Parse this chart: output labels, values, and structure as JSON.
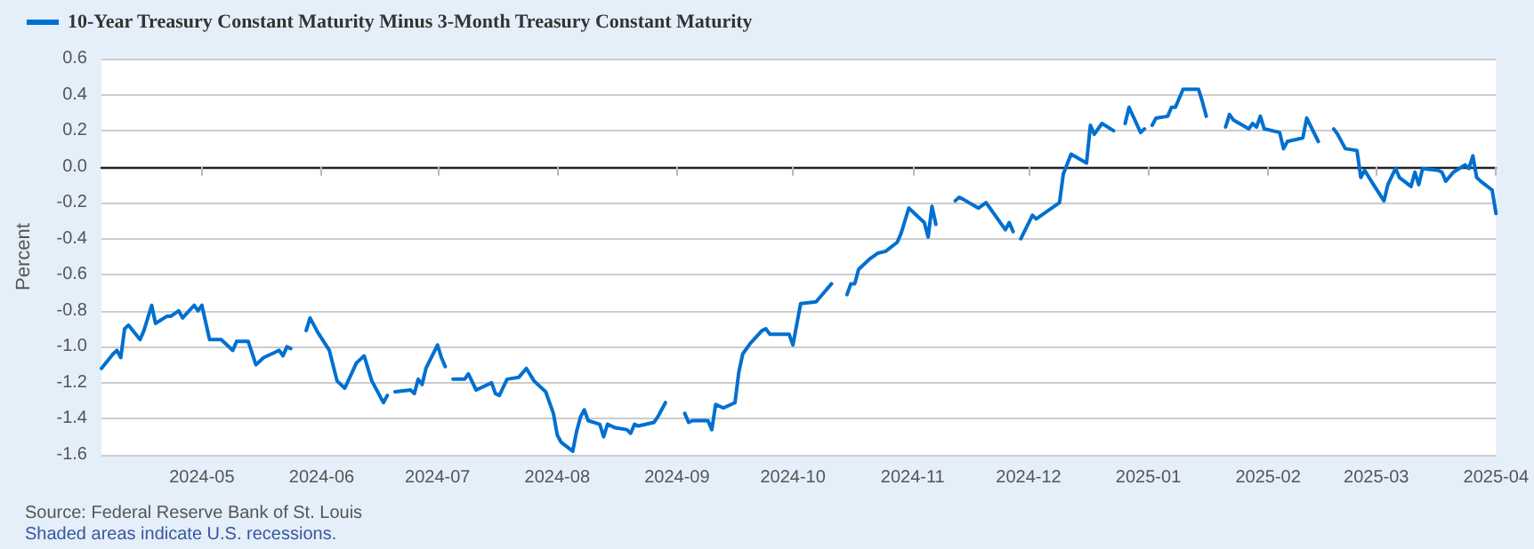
{
  "chart_data": {
    "type": "line",
    "ylabel": "Percent",
    "annotations": [
      "Source: Federal Reserve Bank of St. Louis",
      "Shaded areas indicate U.S. recessions."
    ],
    "x": [
      "2024-04-05",
      "2024-04-08",
      "2024-04-09",
      "2024-04-10",
      "2024-04-11",
      "2024-04-12",
      "2024-04-15",
      "2024-04-16",
      "2024-04-18",
      "2024-04-19",
      "2024-04-22",
      "2024-04-23",
      "2024-04-25",
      "2024-04-26",
      "2024-04-29",
      "2024-04-30",
      "2024-05-01",
      "2024-05-03",
      "2024-05-06",
      "2024-05-07",
      "2024-05-09",
      "2024-05-10",
      "2024-05-13",
      "2024-05-15",
      "2024-05-17",
      "2024-05-20",
      "2024-05-21",
      "2024-05-22",
      "2024-05-23",
      "2024-05-24",
      "2024-05-27",
      "2024-05-28",
      "2024-05-29",
      "2024-05-31",
      "2024-06-03",
      "2024-06-05",
      "2024-06-07",
      "2024-06-10",
      "2024-06-12",
      "2024-06-14",
      "2024-06-17",
      "2024-06-18",
      "2024-06-19",
      "2024-06-20",
      "2024-06-24",
      "2024-06-25",
      "2024-06-26",
      "2024-06-27",
      "2024-06-28",
      "2024-07-01",
      "2024-07-02",
      "2024-07-03",
      "2024-07-04",
      "2024-07-05",
      "2024-07-08",
      "2024-07-09",
      "2024-07-11",
      "2024-07-12",
      "2024-07-15",
      "2024-07-16",
      "2024-07-17",
      "2024-07-19",
      "2024-07-22",
      "2024-07-24",
      "2024-07-26",
      "2024-07-29",
      "2024-07-31",
      "2024-08-01",
      "2024-08-02",
      "2024-08-05",
      "2024-08-06",
      "2024-08-07",
      "2024-08-08",
      "2024-08-09",
      "2024-08-12",
      "2024-08-13",
      "2024-08-14",
      "2024-08-16",
      "2024-08-19",
      "2024-08-20",
      "2024-08-21",
      "2024-08-22",
      "2024-08-26",
      "2024-08-27",
      "2024-08-29",
      "2024-09-02",
      "2024-09-03",
      "2024-09-04",
      "2024-09-05",
      "2024-09-09",
      "2024-09-10",
      "2024-09-11",
      "2024-09-13",
      "2024-09-16",
      "2024-09-17",
      "2024-09-18",
      "2024-09-20",
      "2024-09-23",
      "2024-09-24",
      "2024-09-25",
      "2024-09-30",
      "2024-10-01",
      "2024-10-03",
      "2024-10-07",
      "2024-10-09",
      "2024-10-11",
      "2024-10-14",
      "2024-10-15",
      "2024-10-16",
      "2024-10-17",
      "2024-10-18",
      "2024-10-21",
      "2024-10-23",
      "2024-10-25",
      "2024-10-28",
      "2024-10-29",
      "2024-10-31",
      "2024-11-04",
      "2024-11-05",
      "2024-11-06",
      "2024-11-07",
      "2024-11-11",
      "2024-11-12",
      "2024-11-13",
      "2024-11-14",
      "2024-11-18",
      "2024-11-20",
      "2024-11-25",
      "2024-11-26",
      "2024-11-27",
      "2024-11-28",
      "2024-11-29",
      "2024-12-02",
      "2024-12-03",
      "2024-12-09",
      "2024-12-10",
      "2024-12-12",
      "2024-12-16",
      "2024-12-17",
      "2024-12-18",
      "2024-12-20",
      "2024-12-23",
      "2024-12-25",
      "2024-12-26",
      "2024-12-27",
      "2024-12-30",
      "2024-12-31",
      "2025-01-01",
      "2025-01-02",
      "2025-01-03",
      "2025-01-06",
      "2025-01-07",
      "2025-01-08",
      "2025-01-10",
      "2025-01-14",
      "2025-01-15",
      "2025-01-16",
      "2025-01-20",
      "2025-01-21",
      "2025-01-22",
      "2025-01-23",
      "2025-01-27",
      "2025-01-28",
      "2025-01-29",
      "2025-01-30",
      "2025-01-31",
      "2025-02-04",
      "2025-02-05",
      "2025-02-06",
      "2025-02-10",
      "2025-02-11",
      "2025-02-14",
      "2025-02-17",
      "2025-02-18",
      "2025-02-19",
      "2025-02-21",
      "2025-02-24",
      "2025-02-25",
      "2025-02-26",
      "2025-02-28",
      "2025-03-03",
      "2025-03-04",
      "2025-03-06",
      "2025-03-07",
      "2025-03-10",
      "2025-03-11",
      "2025-03-12",
      "2025-03-13",
      "2025-03-17",
      "2025-03-18",
      "2025-03-19",
      "2025-03-21",
      "2025-03-24",
      "2025-03-25",
      "2025-03-26",
      "2025-03-27",
      "2025-03-28",
      "2025-03-31",
      "2025-04-01"
    ],
    "series": [
      {
        "name": "10-Year Treasury Constant Maturity Minus 3-Month Treasury Constant Maturity",
        "color": "#0070d0",
        "values": [
          -1.12,
          -1.04,
          -1.02,
          -1.06,
          -0.9,
          -0.88,
          -0.96,
          -0.91,
          -0.77,
          -0.87,
          -0.83,
          -0.83,
          -0.8,
          -0.84,
          -0.77,
          -0.8,
          -0.77,
          -0.96,
          -0.96,
          -0.98,
          -1.02,
          -0.97,
          -0.97,
          -1.1,
          -1.06,
          -1.03,
          -1.02,
          -1.05,
          -1.0,
          -1.01,
          null,
          -0.91,
          -0.84,
          -0.92,
          -1.02,
          -1.19,
          -1.23,
          -1.09,
          -1.05,
          -1.19,
          -1.31,
          -1.27,
          null,
          -1.25,
          -1.24,
          -1.26,
          -1.18,
          -1.21,
          -1.12,
          -0.99,
          -1.06,
          -1.11,
          null,
          -1.18,
          -1.18,
          -1.15,
          -1.24,
          -1.23,
          -1.2,
          -1.26,
          -1.27,
          -1.18,
          -1.17,
          -1.12,
          -1.19,
          -1.25,
          -1.37,
          -1.49,
          -1.53,
          -1.58,
          -1.47,
          -1.39,
          -1.35,
          -1.41,
          -1.43,
          -1.5,
          -1.43,
          -1.45,
          -1.46,
          -1.48,
          -1.43,
          -1.44,
          -1.42,
          -1.39,
          -1.31,
          null,
          -1.37,
          -1.42,
          -1.41,
          -1.41,
          -1.46,
          -1.32,
          -1.34,
          -1.31,
          -1.14,
          -1.04,
          -0.98,
          -0.91,
          -0.9,
          -0.93,
          -0.93,
          -0.99,
          -0.76,
          -0.75,
          -0.7,
          -0.65,
          null,
          -0.71,
          -0.65,
          -0.65,
          -0.57,
          -0.51,
          -0.48,
          -0.47,
          -0.42,
          -0.37,
          -0.23,
          -0.31,
          -0.39,
          -0.22,
          -0.32,
          null,
          -0.19,
          -0.17,
          -0.18,
          -0.23,
          -0.2,
          -0.35,
          -0.31,
          -0.36,
          null,
          -0.4,
          -0.27,
          -0.29,
          -0.2,
          -0.04,
          0.07,
          0.02,
          0.23,
          0.18,
          0.24,
          0.2,
          null,
          0.24,
          0.33,
          0.19,
          0.21,
          null,
          0.23,
          0.27,
          0.28,
          0.33,
          0.33,
          0.43,
          0.43,
          0.36,
          0.28,
          null,
          0.22,
          0.29,
          0.26,
          0.21,
          0.24,
          0.22,
          0.28,
          0.21,
          0.19,
          0.1,
          0.14,
          0.16,
          0.27,
          0.14,
          null,
          0.21,
          0.18,
          0.1,
          0.09,
          -0.06,
          -0.02,
          -0.09,
          -0.19,
          -0.1,
          -0.01,
          -0.06,
          -0.11,
          -0.03,
          -0.1,
          -0.01,
          -0.02,
          -0.03,
          -0.08,
          -0.03,
          0.01,
          -0.01,
          0.06,
          -0.06,
          -0.08,
          -0.13,
          -0.26
        ]
      }
    ],
    "xlim": [
      "2024-04-05",
      "2025-04-01"
    ],
    "xticks": [
      "2024-05",
      "2024-06",
      "2024-07",
      "2024-08",
      "2024-09",
      "2024-10",
      "2024-11",
      "2024-12",
      "2025-01",
      "2025-02",
      "2025-03",
      "2025-04"
    ],
    "ylim": [
      -1.6,
      0.6
    ],
    "yticks": [
      {
        "value": -1.6,
        "label": "-1.6"
      },
      {
        "value": -1.4,
        "label": "-1.4"
      },
      {
        "value": -1.2,
        "label": "-1.2"
      },
      {
        "value": -1.0,
        "label": "-1.0"
      },
      {
        "value": -0.8,
        "label": "-0.8"
      },
      {
        "value": -0.6,
        "label": "-0.6"
      },
      {
        "value": -0.4,
        "label": "-0.4"
      },
      {
        "value": -0.2,
        "label": "-0.2"
      },
      {
        "value": 0,
        "label": "0.0"
      },
      {
        "value": 0.2,
        "label": "0.2"
      },
      {
        "value": 0.4,
        "label": "0.4"
      },
      {
        "value": 0.6,
        "label": "0.6"
      }
    ],
    "grid": "y",
    "legend": "top left",
    "marker": "none",
    "line_style": "solid"
  }
}
